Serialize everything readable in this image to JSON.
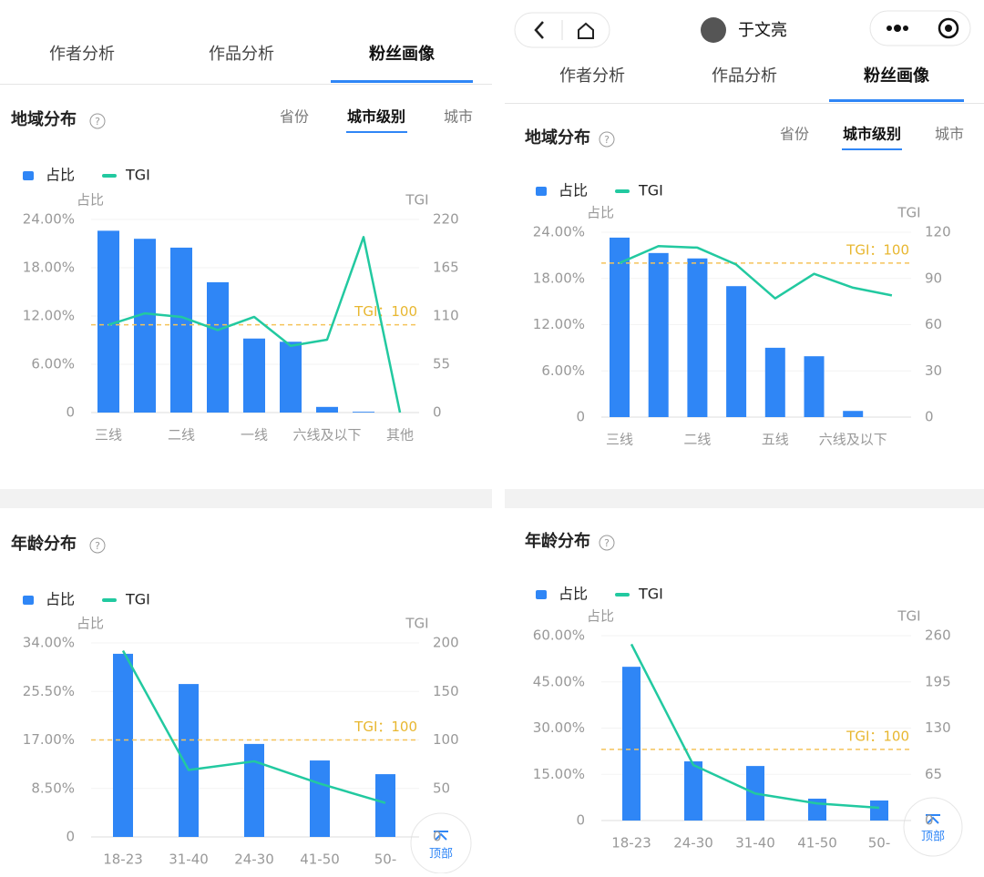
{
  "left": {
    "tabs": [
      "作者分析",
      "作品分析",
      "粉丝画像"
    ],
    "region": {
      "title": "地域分布",
      "subtabs": [
        "省份",
        "城市级别",
        "城市"
      ]
    },
    "age": {
      "title": "年龄分布"
    },
    "top_button": "顶部"
  },
  "right": {
    "header": {
      "name": "于文亮"
    },
    "tabs": [
      "作者分析",
      "作品分析",
      "粉丝画像"
    ],
    "region": {
      "title": "地域分布",
      "subtabs": [
        "省份",
        "城市级别",
        "城市"
      ]
    },
    "age": {
      "title": "年龄分布"
    },
    "top_button": "顶部"
  },
  "chart_data": [
    {
      "type": "bar_line",
      "y_label": "占比",
      "y2_label": "TGI",
      "categories": [
        "三线",
        null,
        "二线",
        null,
        "一线",
        null,
        "六线及以下",
        null,
        "其他"
      ],
      "series": [
        {
          "name": "占比",
          "color": "#2f86f6",
          "values": [
            22.6,
            21.6,
            20.5,
            16.2,
            9.2,
            8.8,
            0.7,
            0.1,
            0
          ]
        },
        {
          "name": "TGI",
          "color": "#22c9a0",
          "axis": "y2",
          "values": [
            100,
            113,
            109,
            94,
            109,
            76,
            83,
            200,
            0
          ]
        }
      ],
      "ylim": [
        0,
        24
      ],
      "yticks": [
        0,
        {
          "value": 6,
          "label": "6.00%"
        },
        {
          "value": 12,
          "label": "12.00%"
        },
        {
          "value": 18,
          "label": "18.00%"
        },
        {
          "value": 24,
          "label": "24.00%"
        }
      ],
      "y2lim": [
        0,
        220
      ],
      "y2ticks": [
        0,
        55,
        110,
        165,
        220
      ],
      "reference_line": {
        "value": 100,
        "label": "TGI：100",
        "color": "#f5c35a"
      },
      "grid": true
    },
    {
      "type": "bar_line",
      "y_label": "占比",
      "y2_label": "TGI",
      "categories": [
        "三线",
        null,
        "二线",
        null,
        "五线",
        null,
        "六线及以下",
        null
      ],
      "series": [
        {
          "name": "占比",
          "color": "#2f86f6",
          "values": [
            23.3,
            21.3,
            20.6,
            17.0,
            9.0,
            7.9,
            0.8,
            0
          ]
        },
        {
          "name": "TGI",
          "color": "#22c9a0",
          "axis": "y2",
          "values": [
            100,
            111,
            110,
            99,
            77,
            93,
            84,
            79
          ]
        }
      ],
      "ylim": [
        0,
        24
      ],
      "yticks": [
        0,
        {
          "value": 6,
          "label": "6.00%"
        },
        {
          "value": 12,
          "label": "12.00%"
        },
        {
          "value": 18,
          "label": "18.00%"
        },
        {
          "value": 24,
          "label": "24.00%"
        }
      ],
      "y2lim": [
        0,
        120
      ],
      "y2ticks": [
        0,
        30,
        60,
        90,
        120
      ],
      "reference_line": {
        "value": 100,
        "label": "TGI：100",
        "color": "#f5c35a"
      },
      "grid": true
    },
    {
      "type": "bar_line",
      "y_label": "占比",
      "y2_label": "TGI",
      "categories": [
        "18-23",
        "31-40",
        "24-30",
        "41-50",
        "50-"
      ],
      "series": [
        {
          "name": "占比",
          "color": "#2f86f6",
          "values": [
            32.1,
            26.8,
            16.3,
            13.4,
            11.0
          ]
        },
        {
          "name": "TGI",
          "color": "#22c9a0",
          "axis": "y2",
          "values": [
            192,
            69,
            78,
            55,
            35
          ]
        }
      ],
      "ylim": [
        0,
        34
      ],
      "yticks": [
        0,
        {
          "value": 8.5,
          "label": "8.50%"
        },
        {
          "value": 17,
          "label": "17.00%"
        },
        {
          "value": 25.5,
          "label": "25.50%"
        },
        {
          "value": 34,
          "label": "34.00%"
        }
      ],
      "y2lim": [
        0,
        200
      ],
      "y2ticks": [
        0,
        50,
        100,
        150,
        200
      ],
      "reference_line": {
        "value": 100,
        "label": "TGI：100",
        "color": "#f5c35a"
      },
      "grid": true
    },
    {
      "type": "bar_line",
      "y_label": "占比",
      "y2_label": "TGI",
      "categories": [
        "18-23",
        "24-30",
        "31-40",
        "41-50",
        "50-"
      ],
      "series": [
        {
          "name": "占比",
          "color": "#2f86f6",
          "values": [
            49.9,
            19.2,
            17.7,
            7.1,
            6.5
          ]
        },
        {
          "name": "TGI",
          "color": "#22c9a0",
          "axis": "y2",
          "values": [
            248,
            78,
            38,
            24,
            18
          ]
        }
      ],
      "ylim": [
        0,
        60
      ],
      "yticks": [
        0,
        {
          "value": 15,
          "label": "15.00%"
        },
        {
          "value": 30,
          "label": "30.00%"
        },
        {
          "value": 45,
          "label": "45.00%"
        },
        {
          "value": 60,
          "label": "60.00%"
        }
      ],
      "y2lim": [
        0,
        260
      ],
      "y2ticks": [
        0,
        65,
        130,
        195,
        260
      ],
      "reference_line": {
        "value": 100,
        "label": "TGI：100",
        "color": "#f5c35a"
      },
      "grid": true
    }
  ]
}
